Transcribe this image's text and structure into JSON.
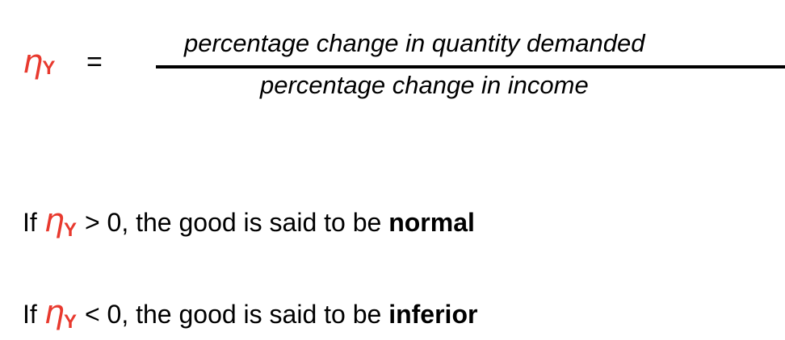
{
  "formula": {
    "symbol": "η",
    "subscript": "Y",
    "equals": "=",
    "numerator": "percentage change in quantity demanded",
    "denominator": "percentage change in income"
  },
  "statements": [
    {
      "prefix": "If",
      "condition": "> 0, the good is said to be",
      "term": "normal"
    },
    {
      "prefix": "If",
      "condition": "< 0, the good is said to be",
      "term": "inferior"
    }
  ],
  "colors": {
    "symbol": "#e8392e",
    "text": "#000000",
    "background": "#ffffff"
  }
}
